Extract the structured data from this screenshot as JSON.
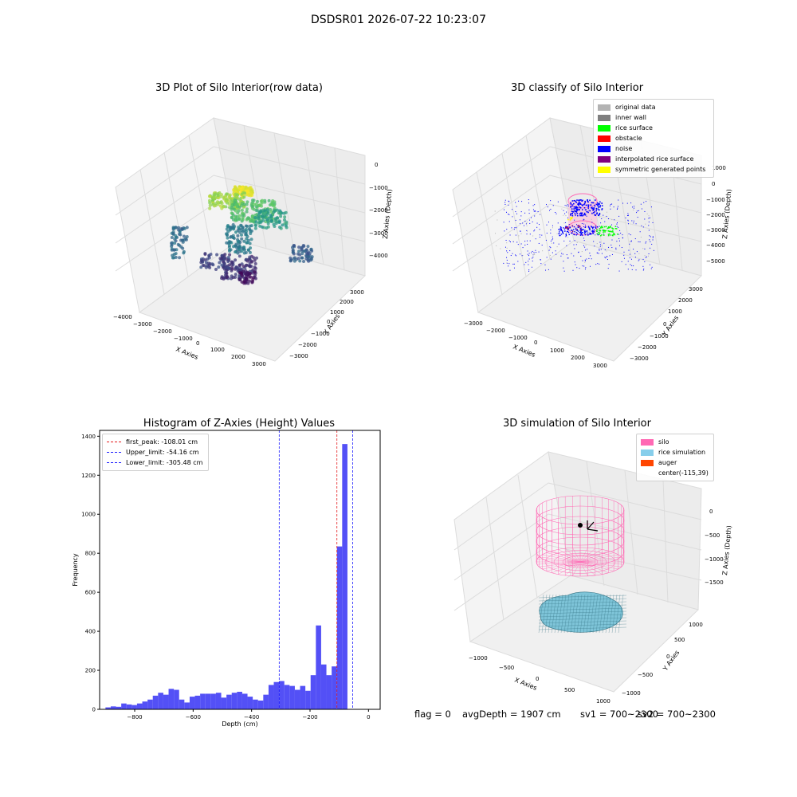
{
  "suptitle": "DSDSR01 2026-07-22 10:23:07",
  "status": {
    "flag": "flag = 0",
    "avg_depth": "avgDepth = 1907 cm",
    "sv1": "sv1 = 700~2300",
    "sv2": "sv2 = 700~2300"
  },
  "colors": {
    "hist_bar": "#4a47f5",
    "first_peak": "#e41a1c",
    "limit_line": "#1a1aff",
    "original": "#b3b3b3",
    "inner_wall": "#7f7f7f",
    "rice_surface": "#00ff00",
    "obstacle": "#ff0000",
    "noise": "#0000ff",
    "interp": "#800080",
    "symmetric": "#ffff00",
    "silo": "#ff69b4",
    "rice_sim": "#87ceeb",
    "auger": "#ff4500"
  },
  "chart_data": [
    {
      "type": "scatter",
      "title": "3D Plot of Silo Interior(row data)",
      "xlabel": "X Axies",
      "ylabel": "Y Axies",
      "zlabel": "Z Axies (Depth)",
      "x_ticks": [
        "−4000",
        "−3000",
        "−2000",
        "−1000",
        "0",
        "1000",
        "2000",
        "3000"
      ],
      "y_ticks": [
        "−3000",
        "−2000",
        "−1000",
        "0",
        "1000",
        "2000",
        "3000"
      ],
      "z_ticks": [
        "0",
        "−1000",
        "−2000",
        "−3000",
        "−4000"
      ],
      "colormap": "viridis"
    },
    {
      "type": "scatter",
      "title": "3D classify of Silo Interior",
      "xlabel": "X Axies",
      "ylabel": "Y Axies",
      "zlabel": "Z Axies (Depth)",
      "x_ticks": [
        "−3000",
        "−2000",
        "−1000",
        "0",
        "1000",
        "2000",
        "3000"
      ],
      "y_ticks": [
        "−3000",
        "−2000",
        "−1000",
        "0",
        "1000",
        "2000",
        "3000"
      ],
      "z_ticks": [
        "1000",
        "0",
        "−1000",
        "−2000",
        "−3000",
        "−4000",
        "−5000"
      ],
      "legend": [
        "original data",
        "inner wall",
        "rice surface",
        "obstacle",
        "noise",
        "interpolated rice surface",
        "symmetric generated points"
      ]
    },
    {
      "type": "bar",
      "title": "Histogram of Z-Axies (Height) Values",
      "xlabel": "Depth (cm)",
      "ylabel": "Frequency",
      "xlim": [
        -920,
        40
      ],
      "ylim": [
        0,
        1430
      ],
      "x_ticks": [
        -800,
        -600,
        -400,
        -200,
        0
      ],
      "x_tick_labels": [
        "−800",
        "−600",
        "−400",
        "−200",
        "0"
      ],
      "y_ticks": [
        0,
        200,
        400,
        600,
        800,
        1000,
        1200,
        1400
      ],
      "bin_start": -900,
      "bin_width": 18,
      "values": [
        10,
        15,
        13,
        30,
        25,
        22,
        30,
        40,
        50,
        70,
        85,
        75,
        105,
        100,
        50,
        35,
        65,
        70,
        80,
        80,
        80,
        85,
        60,
        75,
        85,
        90,
        80,
        65,
        50,
        45,
        75,
        125,
        140,
        145,
        125,
        120,
        100,
        120,
        95,
        175,
        430,
        230,
        175,
        220,
        835,
        1360
      ],
      "lines": [
        {
          "label": "first_peak: -108.01 cm",
          "x": -108.01,
          "style": "first"
        },
        {
          "label": "Upper_limit: -54.16 cm",
          "x": -54.16,
          "style": "limit"
        },
        {
          "label": "Lower_limit: -305.48 cm",
          "x": -305.48,
          "style": "limit"
        }
      ]
    },
    {
      "type": "scatter",
      "title": "3D simulation of Silo Interior",
      "xlabel": "X Axies",
      "ylabel": "Y Axies",
      "zlabel": "Z Axies (Depth)",
      "x_ticks": [
        "−1000",
        "−500",
        "0",
        "500",
        "1000"
      ],
      "y_ticks": [
        "−1000",
        "−500",
        "0",
        "500",
        "1000"
      ],
      "z_ticks": [
        "0",
        "−500",
        "−1000",
        "−1500"
      ],
      "legend": [
        "silo",
        "rice simulation",
        "auger",
        "center(-115,39)"
      ]
    }
  ]
}
